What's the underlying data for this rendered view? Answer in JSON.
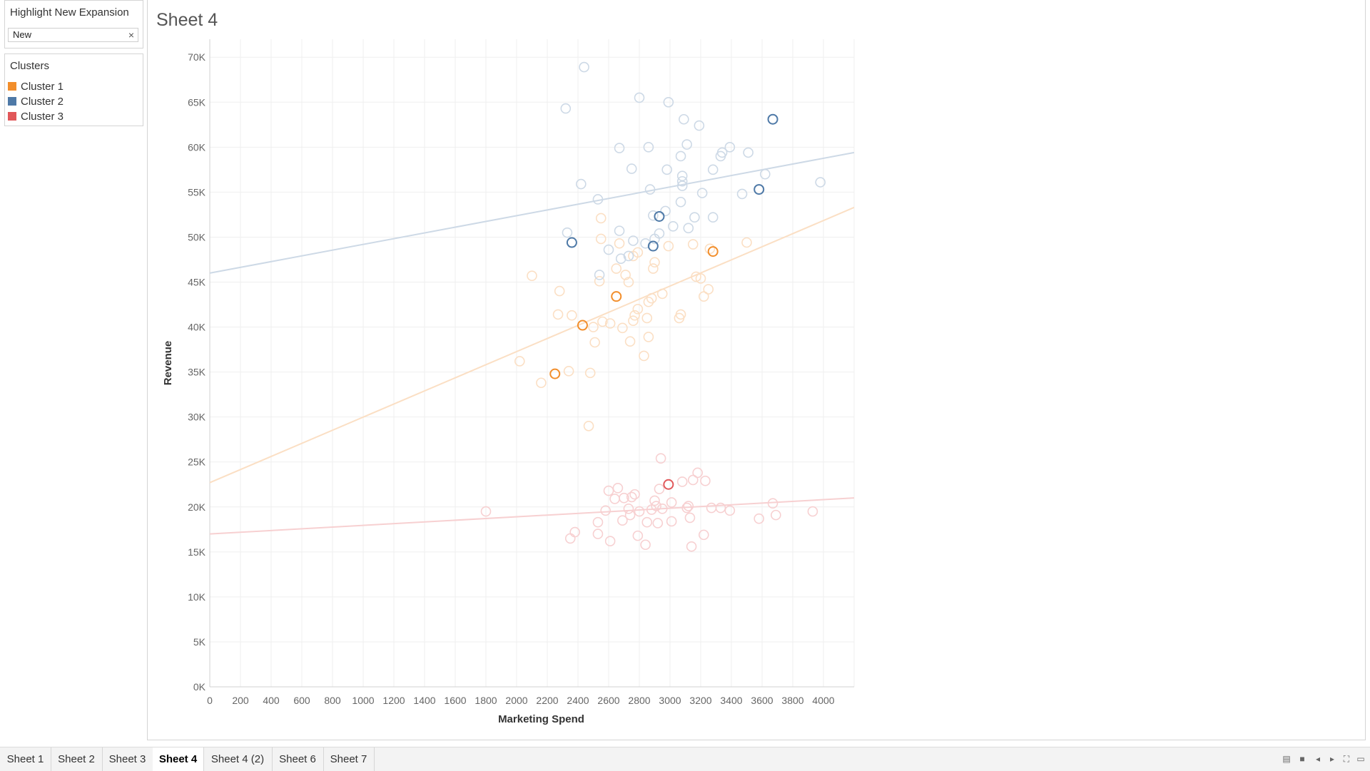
{
  "highlight": {
    "title": "Highlight New Expansion",
    "value": "New",
    "clear_icon": "×"
  },
  "legend": {
    "title": "Clusters",
    "items": [
      {
        "label": "Cluster 1",
        "color": "#f28e2b"
      },
      {
        "label": "Cluster 2",
        "color": "#4e79a7"
      },
      {
        "label": "Cluster 3",
        "color": "#e15759"
      }
    ]
  },
  "sheet_title": "Sheet 4",
  "tabs": [
    "Sheet 1",
    "Sheet 2",
    "Sheet 3",
    "Sheet 4",
    "Sheet 4 (2)",
    "Sheet 6",
    "Sheet 7"
  ],
  "active_tab": "Sheet 4",
  "nav_icons": [
    "grid-view-icon",
    "list-view-icon",
    "first-sheet-icon",
    "next-sheet-icon",
    "fullscreen-icon",
    "present-icon"
  ],
  "chart_data": {
    "type": "scatter",
    "xlabel": "Marketing Spend",
    "ylabel": "Revenue",
    "xlim": [
      0,
      4200
    ],
    "ylim": [
      0,
      72000
    ],
    "x_ticks": [
      0,
      200,
      400,
      600,
      800,
      1000,
      1200,
      1400,
      1600,
      1800,
      2000,
      2200,
      2400,
      2600,
      2800,
      3000,
      3200,
      3400,
      3600,
      3800,
      4000
    ],
    "y_ticks": [
      {
        "v": 0,
        "l": "0K"
      },
      {
        "v": 5000,
        "l": "5K"
      },
      {
        "v": 10000,
        "l": "10K"
      },
      {
        "v": 15000,
        "l": "15K"
      },
      {
        "v": 20000,
        "l": "20K"
      },
      {
        "v": 25000,
        "l": "25K"
      },
      {
        "v": 30000,
        "l": "30K"
      },
      {
        "v": 35000,
        "l": "35K"
      },
      {
        "v": 40000,
        "l": "40K"
      },
      {
        "v": 45000,
        "l": "45K"
      },
      {
        "v": 50000,
        "l": "50K"
      },
      {
        "v": 55000,
        "l": "55K"
      },
      {
        "v": 60000,
        "l": "60K"
      },
      {
        "v": 65000,
        "l": "65K"
      },
      {
        "v": 70000,
        "l": "70K"
      }
    ],
    "grid": true,
    "series": [
      {
        "name": "Cluster 1",
        "color": "#f28e2b",
        "trend": [
          [
            0,
            22700
          ],
          [
            4200,
            53300
          ]
        ],
        "points": [
          [
            2250,
            34800,
            1
          ],
          [
            2430,
            40200,
            1
          ],
          [
            2650,
            43400,
            1
          ],
          [
            3280,
            48400,
            1
          ],
          [
            2160,
            33800,
            0
          ],
          [
            2020,
            36200,
            0
          ],
          [
            2100,
            45700,
            0
          ],
          [
            2280,
            44000,
            0
          ],
          [
            2270,
            41400,
            0
          ],
          [
            2360,
            41300,
            0
          ],
          [
            2340,
            35100,
            0
          ],
          [
            2480,
            34900,
            0
          ],
          [
            2470,
            29000,
            0
          ],
          [
            2500,
            40000,
            0
          ],
          [
            2510,
            38300,
            0
          ],
          [
            2540,
            45100,
            0
          ],
          [
            2550,
            52100,
            0
          ],
          [
            2550,
            49800,
            0
          ],
          [
            2560,
            40600,
            0
          ],
          [
            2610,
            40400,
            0
          ],
          [
            2650,
            46500,
            0
          ],
          [
            2670,
            49300,
            0
          ],
          [
            2690,
            39900,
            0
          ],
          [
            2710,
            45800,
            0
          ],
          [
            2730,
            45000,
            0
          ],
          [
            2740,
            38400,
            0
          ],
          [
            2760,
            40700,
            0
          ],
          [
            2770,
            41300,
            0
          ],
          [
            2790,
            48300,
            0
          ],
          [
            2790,
            42000,
            0
          ],
          [
            2830,
            36800,
            0
          ],
          [
            2850,
            41000,
            0
          ],
          [
            2860,
            38900,
            0
          ],
          [
            2860,
            42800,
            0
          ],
          [
            2880,
            43200,
            0
          ],
          [
            2890,
            46500,
            0
          ],
          [
            2900,
            47200,
            0
          ],
          [
            2950,
            43700,
            0
          ],
          [
            2990,
            49000,
            0
          ],
          [
            3060,
            41000,
            0
          ],
          [
            3070,
            41400,
            0
          ],
          [
            3170,
            45600,
            0
          ],
          [
            3200,
            45400,
            0
          ],
          [
            3220,
            43400,
            0
          ],
          [
            3250,
            44200,
            0
          ],
          [
            3260,
            48700,
            0
          ],
          [
            3500,
            49400,
            0
          ],
          [
            3150,
            49200,
            0
          ],
          [
            2760,
            47900,
            0
          ]
        ]
      },
      {
        "name": "Cluster 2",
        "color": "#4e79a7",
        "trend": [
          [
            0,
            46000
          ],
          [
            4200,
            59400
          ]
        ],
        "points": [
          [
            2360,
            49400,
            1
          ],
          [
            2890,
            49000,
            1
          ],
          [
            2930,
            52300,
            1
          ],
          [
            3580,
            55300,
            1
          ],
          [
            3670,
            63100,
            1
          ],
          [
            2440,
            68900,
            0
          ],
          [
            2320,
            64300,
            0
          ],
          [
            2330,
            50500,
            0
          ],
          [
            2420,
            55900,
            0
          ],
          [
            2530,
            54200,
            0
          ],
          [
            2540,
            45800,
            0
          ],
          [
            2600,
            48600,
            0
          ],
          [
            2670,
            59900,
            0
          ],
          [
            2670,
            50700,
            0
          ],
          [
            2680,
            47600,
            0
          ],
          [
            2730,
            47900,
            0
          ],
          [
            2750,
            57600,
            0
          ],
          [
            2760,
            49600,
            0
          ],
          [
            2800,
            65500,
            0
          ],
          [
            2840,
            49300,
            0
          ],
          [
            2860,
            60000,
            0
          ],
          [
            2870,
            55300,
            0
          ],
          [
            2890,
            52400,
            0
          ],
          [
            2900,
            49800,
            0
          ],
          [
            2930,
            50400,
            0
          ],
          [
            2970,
            52900,
            0
          ],
          [
            2980,
            57500,
            0
          ],
          [
            2990,
            65000,
            0
          ],
          [
            3020,
            51200,
            0
          ],
          [
            3070,
            53900,
            0
          ],
          [
            3070,
            59000,
            0
          ],
          [
            3080,
            56800,
            0
          ],
          [
            3080,
            55700,
            0
          ],
          [
            3080,
            56200,
            0
          ],
          [
            3090,
            63100,
            0
          ],
          [
            3110,
            60300,
            0
          ],
          [
            3120,
            51000,
            0
          ],
          [
            3160,
            52200,
            0
          ],
          [
            3190,
            62400,
            0
          ],
          [
            3210,
            54900,
            0
          ],
          [
            3280,
            52200,
            0
          ],
          [
            3280,
            57500,
            0
          ],
          [
            3330,
            59000,
            0
          ],
          [
            3340,
            59400,
            0
          ],
          [
            3390,
            60000,
            0
          ],
          [
            3470,
            54800,
            0
          ],
          [
            3510,
            59400,
            0
          ],
          [
            3620,
            57000,
            0
          ],
          [
            3980,
            56100,
            0
          ]
        ]
      },
      {
        "name": "Cluster 3",
        "color": "#e15759",
        "trend": [
          [
            0,
            17000
          ],
          [
            4200,
            21000
          ]
        ],
        "points": [
          [
            2990,
            22500,
            1
          ],
          [
            1800,
            19500,
            0
          ],
          [
            2350,
            16500,
            0
          ],
          [
            2380,
            17200,
            0
          ],
          [
            2530,
            18300,
            0
          ],
          [
            2530,
            17000,
            0
          ],
          [
            2580,
            19600,
            0
          ],
          [
            2600,
            21800,
            0
          ],
          [
            2610,
            16200,
            0
          ],
          [
            2640,
            20900,
            0
          ],
          [
            2660,
            22100,
            0
          ],
          [
            2690,
            18500,
            0
          ],
          [
            2700,
            21000,
            0
          ],
          [
            2730,
            19800,
            0
          ],
          [
            2740,
            19100,
            0
          ],
          [
            2750,
            21100,
            0
          ],
          [
            2770,
            21400,
            0
          ],
          [
            2790,
            16800,
            0
          ],
          [
            2800,
            19500,
            0
          ],
          [
            2840,
            15800,
            0
          ],
          [
            2850,
            18300,
            0
          ],
          [
            2880,
            19700,
            0
          ],
          [
            2900,
            20700,
            0
          ],
          [
            2910,
            20100,
            0
          ],
          [
            2920,
            18200,
            0
          ],
          [
            2930,
            22000,
            0
          ],
          [
            2940,
            25400,
            0
          ],
          [
            2950,
            19800,
            0
          ],
          [
            3010,
            20500,
            0
          ],
          [
            3010,
            18400,
            0
          ],
          [
            3080,
            22800,
            0
          ],
          [
            3110,
            19900,
            0
          ],
          [
            3120,
            20100,
            0
          ],
          [
            3130,
            18800,
            0
          ],
          [
            3140,
            15600,
            0
          ],
          [
            3150,
            23000,
            0
          ],
          [
            3180,
            23800,
            0
          ],
          [
            3220,
            16900,
            0
          ],
          [
            3230,
            22900,
            0
          ],
          [
            3270,
            19900,
            0
          ],
          [
            3330,
            19900,
            0
          ],
          [
            3390,
            19600,
            0
          ],
          [
            3580,
            18700,
            0
          ],
          [
            3670,
            20400,
            0
          ],
          [
            3690,
            19100,
            0
          ],
          [
            3930,
            19500,
            0
          ]
        ]
      }
    ]
  }
}
